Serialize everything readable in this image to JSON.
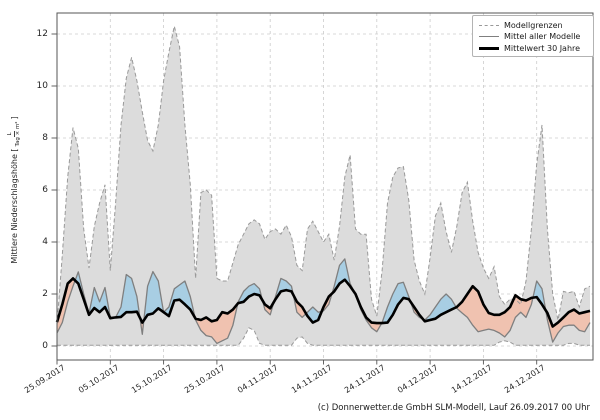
{
  "caption": "(c) Donnerwetter.de GmbH SLM-Modell, Lauf 26.09.2017 00 Uhr",
  "y_axis": {
    "label_open": "Mittlere Niederschlagshöhe [",
    "unit_numerator": "L",
    "unit_denominator": "Tag × m²",
    "label_close": "]",
    "ticks": [
      0,
      2,
      4,
      6,
      8,
      10,
      12
    ]
  },
  "legend": {
    "items": [
      {
        "label": "Modellgrenzen",
        "style": "dashed-gray"
      },
      {
        "label": "Mittel aller Modelle",
        "style": "solid-gray"
      },
      {
        "label": "Mittelwert 30 Jahre",
        "style": "thick-black"
      }
    ]
  },
  "colors": {
    "grid": "#cccccc",
    "envelope_fill": "#dcdcdc",
    "envelope_border": "#999999",
    "model_mean": "#7f7f7f",
    "mean_30y": "#000000",
    "above_fill": "#a8cee3",
    "below_fill": "#f0c2b0",
    "spine": "#555555"
  },
  "chart_data": {
    "type": "line",
    "title": "",
    "xlabel": "",
    "ylabel": "Mittlere Niederschlagshöhe [L/(Tag × m²)]",
    "ylim": [
      -0.5,
      12.8
    ],
    "grid": true,
    "legend_position": "upper right",
    "x_step": "1 Tag",
    "x_start_label": "25.09.2017",
    "x_tick_days": [
      0,
      10,
      20,
      30,
      40,
      50,
      60,
      70,
      80,
      90
    ],
    "x_tick_labels": [
      "25.09.2017",
      "05.10.2017",
      "15.10.2017",
      "25.10.2017",
      "04.11.2017",
      "14.11.2017",
      "24.11.2017",
      "04.12.2017",
      "14.12.2017",
      "24.12.2017"
    ],
    "fill_rules": {
      "above": "blau: Mittel aller Modelle über Mittelwert 30 Jahre",
      "below": "rot: Mittel aller Modelle unter Mittelwert 30 Jahre"
    },
    "series": [
      {
        "name": "Modellgrenzen (obere Grenze)",
        "values": [
          0.8,
          3.5,
          6.5,
          8.4,
          7.6,
          4.5,
          3.0,
          4.6,
          5.5,
          6.2,
          2.9,
          5.5,
          8.5,
          10.3,
          11.1,
          10.2,
          9.0,
          7.9,
          7.5,
          8.5,
          10.2,
          11.3,
          12.3,
          11.5,
          8.5,
          6.2,
          2.6,
          5.9,
          6.0,
          5.8,
          2.6,
          2.5,
          2.5,
          3.2,
          3.9,
          4.3,
          4.7,
          4.85,
          4.7,
          4.1,
          4.4,
          4.5,
          4.3,
          4.65,
          4.2,
          3.1,
          2.9,
          4.5,
          4.8,
          4.4,
          4.0,
          4.3,
          3.3,
          4.6,
          6.5,
          7.35,
          4.5,
          4.3,
          4.3,
          1.8,
          1.15,
          2.9,
          5.5,
          6.5,
          6.85,
          6.9,
          5.6,
          3.3,
          2.5,
          2.0,
          3.4,
          5.0,
          5.5,
          4.4,
          3.6,
          4.6,
          5.9,
          6.3,
          4.8,
          3.6,
          3.0,
          2.6,
          3.05,
          1.9,
          1.6,
          1.8,
          1.8,
          1.6,
          2.5,
          4.5,
          7.0,
          8.5,
          4.5,
          2.0,
          1.0,
          2.1,
          2.05,
          2.1,
          1.5,
          2.2,
          2.3
        ]
      },
      {
        "name": "Modellgrenzen (untere Grenze)",
        "values": [
          0.03,
          0.03,
          0.03,
          0.03,
          0.03,
          0.03,
          0.03,
          0.03,
          0.03,
          0.03,
          0.03,
          0.03,
          0.03,
          0.03,
          0.03,
          0.03,
          0.03,
          0.03,
          0.03,
          0.03,
          0.03,
          0.03,
          0.03,
          0.03,
          0.03,
          0.03,
          0.03,
          0.03,
          0.03,
          0.03,
          0.03,
          0.03,
          0.03,
          0.03,
          0.03,
          0.3,
          0.7,
          0.6,
          0.1,
          0.03,
          0.03,
          0.03,
          0.03,
          0.03,
          0.03,
          0.3,
          0.35,
          0.1,
          0.03,
          0.03,
          0.03,
          0.03,
          0.03,
          0.03,
          0.03,
          0.03,
          0.03,
          0.03,
          0.03,
          0.03,
          0.03,
          0.03,
          0.03,
          0.03,
          0.03,
          0.03,
          0.03,
          0.03,
          0.03,
          0.03,
          0.03,
          0.03,
          0.03,
          0.03,
          0.03,
          0.03,
          0.03,
          0.03,
          0.03,
          0.03,
          0.03,
          0.03,
          0.03,
          0.15,
          0.2,
          0.15,
          0.03,
          0.03,
          0.03,
          0.03,
          0.03,
          0.03,
          0.03,
          0.03,
          0.03,
          0.03,
          0.1,
          0.1,
          0.03,
          0.03,
          0.03
        ]
      },
      {
        "name": "Mittel aller Modelle",
        "values": [
          0.5,
          0.9,
          1.7,
          2.3,
          2.85,
          2.0,
          1.25,
          2.25,
          1.7,
          2.25,
          1.1,
          1.1,
          1.5,
          2.75,
          2.6,
          1.9,
          0.45,
          2.3,
          2.86,
          2.5,
          1.3,
          1.5,
          2.2,
          2.35,
          2.5,
          1.9,
          1.0,
          0.6,
          0.4,
          0.35,
          0.1,
          0.2,
          0.3,
          0.8,
          1.7,
          2.1,
          2.3,
          2.4,
          2.2,
          1.4,
          1.2,
          1.9,
          2.6,
          2.5,
          2.3,
          1.3,
          1.1,
          1.3,
          1.5,
          1.3,
          1.35,
          1.6,
          2.3,
          3.1,
          3.35,
          2.4,
          2.0,
          1.4,
          1.0,
          0.7,
          0.55,
          0.9,
          1.5,
          2.0,
          2.4,
          2.45,
          1.9,
          1.3,
          1.1,
          1.0,
          1.2,
          1.5,
          1.8,
          2.0,
          1.8,
          1.45,
          1.27,
          1.1,
          0.8,
          0.55,
          0.6,
          0.65,
          0.6,
          0.5,
          0.35,
          0.6,
          1.1,
          1.3,
          1.1,
          1.6,
          2.5,
          2.2,
          1.0,
          0.15,
          0.5,
          0.75,
          0.8,
          0.8,
          0.6,
          0.55,
          0.9
        ]
      },
      {
        "name": "Mittelwert 30 Jahre",
        "values": [
          0.92,
          1.6,
          2.4,
          2.6,
          2.4,
          1.8,
          1.2,
          1.46,
          1.3,
          1.5,
          1.07,
          1.1,
          1.12,
          1.3,
          1.3,
          1.32,
          0.9,
          1.2,
          1.25,
          1.45,
          1.3,
          1.15,
          1.75,
          1.78,
          1.6,
          1.4,
          1.05,
          1.0,
          1.1,
          0.95,
          1.0,
          1.3,
          1.25,
          1.4,
          1.65,
          1.7,
          1.9,
          2.0,
          1.95,
          1.6,
          1.45,
          1.8,
          2.1,
          2.15,
          2.1,
          1.7,
          1.5,
          1.15,
          0.9,
          1.0,
          1.5,
          1.9,
          2.1,
          2.4,
          2.55,
          2.3,
          2.0,
          1.5,
          1.1,
          0.9,
          0.88,
          0.88,
          0.9,
          1.2,
          1.6,
          1.85,
          1.8,
          1.5,
          1.2,
          0.95,
          1.0,
          1.05,
          1.2,
          1.3,
          1.4,
          1.5,
          1.7,
          2.0,
          2.3,
          2.1,
          1.6,
          1.27,
          1.2,
          1.2,
          1.3,
          1.5,
          1.95,
          1.8,
          1.75,
          1.85,
          1.88,
          1.6,
          1.27,
          0.75,
          0.9,
          1.1,
          1.3,
          1.4,
          1.25,
          1.3,
          1.35
        ]
      }
    ]
  }
}
